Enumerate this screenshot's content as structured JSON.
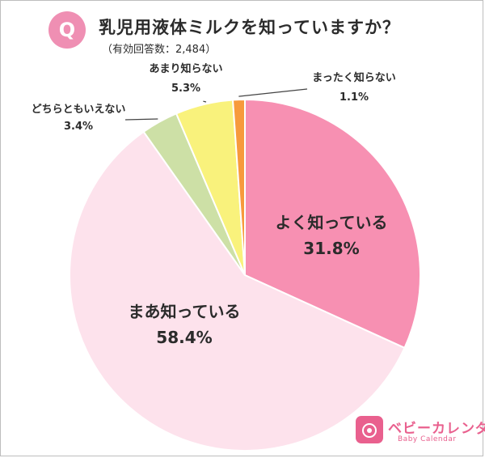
{
  "header": {
    "badge": "Q",
    "title": "乳児用液体ミルクを知っていますか？",
    "subtitle": "（有効回答数：2,484）"
  },
  "chart_data": {
    "type": "pie",
    "title": "乳児用液体ミルクを知っていますか？",
    "subtitle": "（有効回答数：2,484）",
    "start": "12 o'clock",
    "direction": "clockwise",
    "slices": [
      {
        "label": "よく知っている",
        "value": 31.8,
        "value_text": "31.8%",
        "color": "#f790b2",
        "placement": "inside"
      },
      {
        "label": "まあ知っている",
        "value": 58.4,
        "value_text": "58.4%",
        "color": "#fde2ec",
        "placement": "inside"
      },
      {
        "label": "どちらともいえない",
        "value": 3.4,
        "value_text": "3.4%",
        "color": "#cde0a6",
        "placement": "outside"
      },
      {
        "label": "あまり知らない",
        "value": 5.3,
        "value_text": "5.3%",
        "color": "#f9f27c",
        "placement": "outside"
      },
      {
        "label": "まったく知らない",
        "value": 1.1,
        "value_text": "1.1%",
        "color": "#f79a3c",
        "placement": "outside"
      }
    ]
  },
  "logo": {
    "name": "ベビーカレンダー",
    "sub": "Baby Calendar"
  }
}
